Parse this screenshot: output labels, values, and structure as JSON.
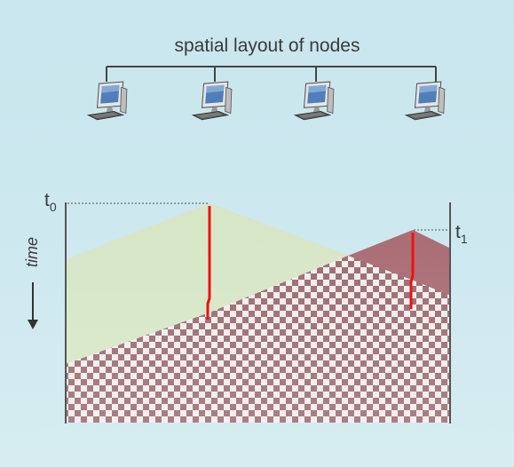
{
  "diagram": {
    "title": "spatial layout of nodes",
    "nodes": [
      {
        "name": "node-1",
        "icon": "computer-icon"
      },
      {
        "name": "node-2",
        "icon": "computer-icon"
      },
      {
        "name": "node-3",
        "icon": "computer-icon"
      },
      {
        "name": "node-4",
        "icon": "computer-icon"
      }
    ],
    "time_axis_label": "time",
    "t0_label": "t",
    "t0_sub": "0",
    "t1_label": "t",
    "t1_sub": "1",
    "colors": {
      "green_region": "#d6e6c6",
      "red_region": "#a86b72",
      "checker_dark": "#9a6a6c",
      "checker_light": "#f2ecee",
      "red_marks": "#ee1111",
      "axis": "#555555",
      "bus_line": "#444444"
    }
  }
}
